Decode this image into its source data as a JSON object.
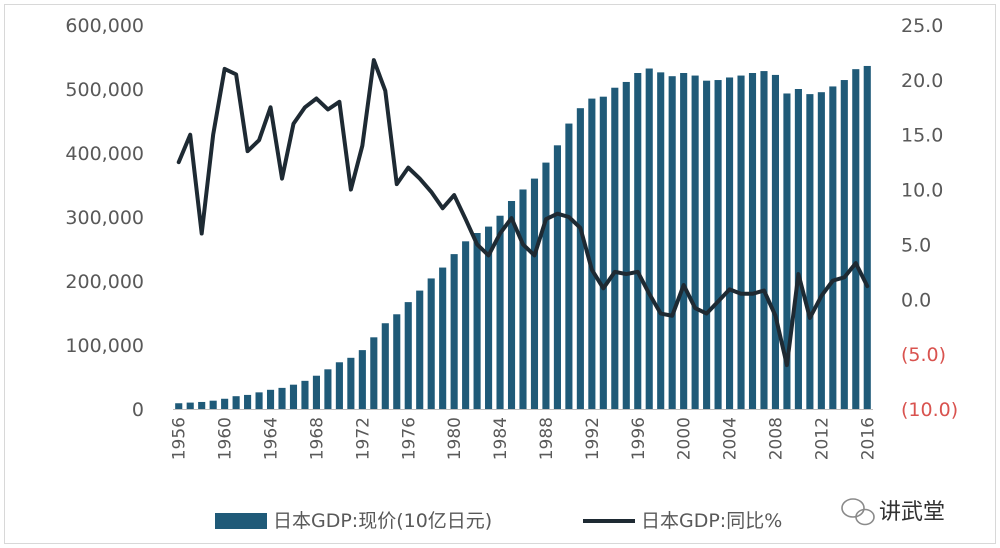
{
  "chart_data": {
    "type": "bar",
    "x": [
      1956,
      1957,
      1958,
      1959,
      1960,
      1961,
      1962,
      1963,
      1964,
      1965,
      1966,
      1967,
      1968,
      1969,
      1970,
      1971,
      1972,
      1973,
      1974,
      1975,
      1976,
      1977,
      1978,
      1979,
      1980,
      1981,
      1982,
      1983,
      1984,
      1985,
      1986,
      1987,
      1988,
      1989,
      1990,
      1991,
      1992,
      1993,
      1994,
      1995,
      1996,
      1997,
      1998,
      1999,
      2000,
      2001,
      2002,
      2003,
      2004,
      2005,
      2006,
      2007,
      2008,
      2009,
      2010,
      2011,
      2012,
      2013,
      2014,
      2015,
      2016
    ],
    "x_tick_labels": [
      "1956",
      "1960",
      "1964",
      "1968",
      "1972",
      "1976",
      "1980",
      "1984",
      "1988",
      "1992",
      "1996",
      "2000",
      "2004",
      "2008",
      "2012",
      "2016"
    ],
    "series": [
      {
        "name": "日本GDP:现价(10亿日元)",
        "type": "bar",
        "axis": "left",
        "values": [
          9000,
          10000,
          11000,
          13000,
          16000,
          20000,
          22000,
          26000,
          30000,
          33000,
          38000,
          44000,
          52000,
          62000,
          73000,
          80000,
          92000,
          112000,
          134000,
          148000,
          167000,
          185000,
          204000,
          221000,
          242000,
          262000,
          275000,
          285000,
          302000,
          325000,
          343000,
          360000,
          385000,
          412000,
          446000,
          470000,
          485000,
          488000,
          502000,
          511000,
          525000,
          532000,
          526000,
          520000,
          525000,
          521000,
          513000,
          514000,
          518000,
          521000,
          525000,
          528000,
          522000,
          493000,
          500000,
          492000,
          495000,
          504000,
          514000,
          531000,
          536000
        ]
      },
      {
        "name": "日本GDP:同比%",
        "type": "line",
        "axis": "right",
        "values": [
          12.5,
          15,
          6,
          15,
          21,
          20.5,
          13.5,
          14.5,
          17.5,
          11,
          16,
          17.5,
          18.3,
          17.3,
          18,
          10,
          14,
          21.8,
          19,
          10.5,
          12,
          11,
          9.8,
          8.3,
          9.5,
          7.3,
          5,
          4,
          6,
          7.4,
          5,
          4,
          7.3,
          7.8,
          7.5,
          6.5,
          2.7,
          1,
          2.5,
          2.3,
          2.5,
          0.5,
          -1.3,
          -1.5,
          1.3,
          -0.8,
          -1.3,
          -0.2,
          0.9,
          0.5,
          0.5,
          0.8,
          -1.5,
          -6,
          2.3,
          -1.7,
          0.3,
          1.7,
          2,
          3.3,
          1.2
        ]
      }
    ],
    "y_left": {
      "ylim": [
        0,
        600000
      ],
      "ticks": [
        0,
        100000,
        200000,
        300000,
        400000,
        500000,
        600000
      ],
      "tick_labels": [
        "0",
        "100,000",
        "200,000",
        "300,000",
        "400,000",
        "500,000",
        "600,000"
      ]
    },
    "y_right": {
      "ylim": [
        -10,
        25
      ],
      "ticks": [
        -10,
        -5,
        0,
        5,
        10,
        15,
        20,
        25
      ],
      "tick_labels": [
        "(10.0)",
        "(5.0)",
        "0.0",
        "5.0",
        "10.0",
        "15.0",
        "20.0",
        "25.0"
      ]
    },
    "legend_placement": "bottom",
    "grid": false,
    "colors": {
      "bar": "#1f5a78",
      "line": "#1e2a33",
      "axis_text": "#595959",
      "negative_text": "#d9534f"
    }
  },
  "watermark": {
    "text": "讲武堂",
    "icon": "wechat-icon"
  }
}
